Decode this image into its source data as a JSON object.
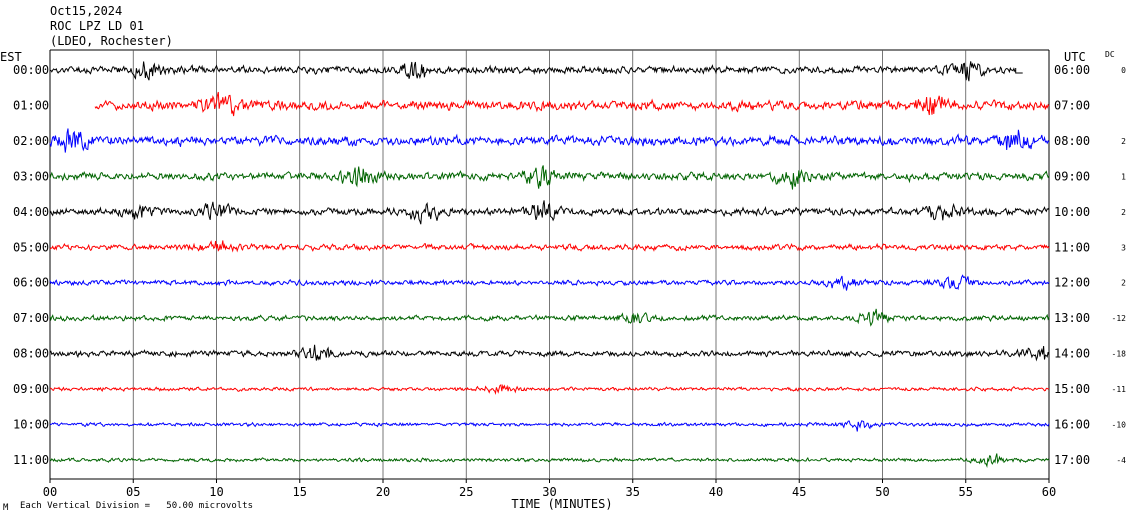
{
  "header": {
    "date": "Oct15,2024",
    "station": "ROC LPZ LD 01",
    "network": "(LDEO, Rochester)"
  },
  "footer": {
    "mark": "M",
    "scale_text": "Each Vertical Division =   50.00 microvolts"
  },
  "colors": {
    "cycle": [
      "#000000",
      "#ff0000",
      "#0000ff",
      "#006400"
    ],
    "grid": "#000000"
  },
  "chart_data": {
    "type": "line",
    "title": "",
    "xlabel": "TIME (MINUTES)",
    "ylabel_left": "EST",
    "ylabel_right": "UTC",
    "dc_label": "DC",
    "xlim": [
      0,
      60
    ],
    "x_ticks": [
      "00",
      "05",
      "10",
      "15",
      "20",
      "25",
      "30",
      "35",
      "40",
      "45",
      "50",
      "55",
      "60"
    ],
    "rows": [
      {
        "est": "00:00",
        "utc": "06:00",
        "dc": "0",
        "color": "#000000",
        "start_min": 0.0,
        "end_min": 58.0,
        "amp": 1.0,
        "bursts": [
          6,
          22,
          55
        ]
      },
      {
        "est": "01:00",
        "utc": "07:00",
        "dc": "",
        "color": "#ff0000",
        "start_min": 2.7,
        "end_min": 60.0,
        "amp": 1.3,
        "bursts": [
          10.5,
          53
        ]
      },
      {
        "est": "02:00",
        "utc": "08:00",
        "dc": "2",
        "color": "#0000ff",
        "start_min": 0.0,
        "end_min": 60.0,
        "amp": 1.3,
        "bursts": [
          1.5,
          58
        ]
      },
      {
        "est": "03:00",
        "utc": "09:00",
        "dc": "1",
        "color": "#006400",
        "start_min": 0.0,
        "end_min": 60.0,
        "amp": 1.1,
        "bursts": [
          18.5,
          29.5,
          44.5
        ]
      },
      {
        "est": "04:00",
        "utc": "10:00",
        "dc": "2",
        "color": "#000000",
        "start_min": 0.0,
        "end_min": 60.0,
        "amp": 1.0,
        "bursts": [
          5.5,
          10,
          22.5,
          29.5,
          53.5
        ]
      },
      {
        "est": "05:00",
        "utc": "11:00",
        "dc": "3",
        "color": "#ff0000",
        "start_min": 0.0,
        "end_min": 60.0,
        "amp": 0.8,
        "bursts": [
          10
        ]
      },
      {
        "est": "06:00",
        "utc": "12:00",
        "dc": "2",
        "color": "#0000ff",
        "start_min": 0.0,
        "end_min": 60.0,
        "amp": 0.7,
        "bursts": [
          47.5,
          54.5
        ]
      },
      {
        "est": "07:00",
        "utc": "13:00",
        "dc": "-12",
        "color": "#006400",
        "start_min": 0.0,
        "end_min": 60.0,
        "amp": 0.7,
        "bursts": [
          35,
          49.5
        ]
      },
      {
        "est": "08:00",
        "utc": "14:00",
        "dc": "-18",
        "color": "#000000",
        "start_min": 0.0,
        "end_min": 60.0,
        "amp": 0.8,
        "bursts": [
          16,
          59.5
        ]
      },
      {
        "est": "09:00",
        "utc": "15:00",
        "dc": "-11",
        "color": "#ff0000",
        "start_min": 0.0,
        "end_min": 60.0,
        "amp": 0.5,
        "bursts": [
          27
        ]
      },
      {
        "est": "10:00",
        "utc": "16:00",
        "dc": "-10",
        "color": "#0000ff",
        "start_min": 0.0,
        "end_min": 60.0,
        "amp": 0.5,
        "bursts": [
          48.5
        ]
      },
      {
        "est": "11:00",
        "utc": "17:00",
        "dc": "-4",
        "color": "#006400",
        "start_min": 0.0,
        "end_min": 60.0,
        "amp": 0.5,
        "bursts": [
          56.5
        ]
      }
    ]
  }
}
